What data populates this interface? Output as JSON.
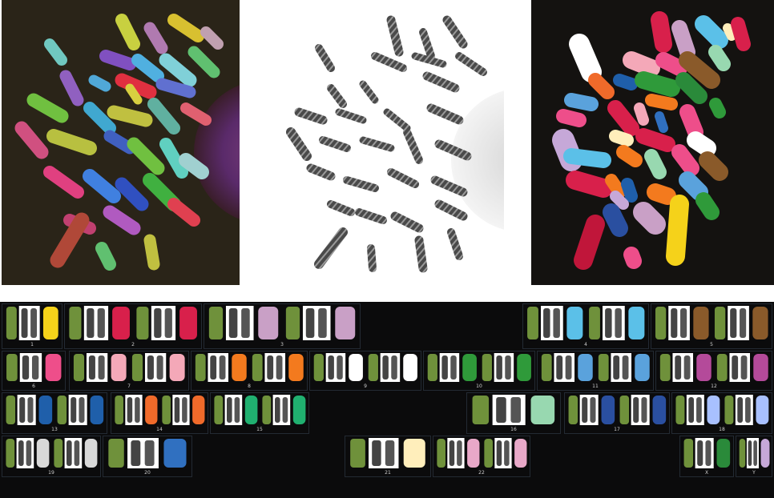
{
  "panels": {
    "fish": {
      "background": "#2a2418"
    },
    "gband": {
      "background": "#ffffff"
    },
    "classified": {
      "background": "#141210"
    }
  },
  "karyogram": {
    "background": "#0b0b0c",
    "labels": {
      "c1": "1",
      "c2": "2",
      "c3": "3",
      "c4": "4",
      "c5": "5",
      "c6": "6",
      "c7": "7",
      "c8": "8",
      "c9": "9",
      "c10": "10",
      "c11": "11",
      "c12": "12",
      "c13": "13",
      "c14": "14",
      "c15": "15",
      "c16": "16",
      "c17": "17",
      "c18": "18",
      "c19": "19",
      "c20": "20",
      "c21": "21",
      "c22": "22",
      "cX": "X",
      "cY": "Y"
    }
  },
  "palette": [
    "#f5d21a",
    "#d8204b",
    "#c9a0c6",
    "#5bc0e8",
    "#8a5a2a",
    "#ee4e8a",
    "#f4a8b8",
    "#f37a1e",
    "#ffffff",
    "#2f9a3a",
    "#5aa2dc",
    "#b44a9a",
    "#1f5faa",
    "#f06a2a",
    "#20b070",
    "#98d8b0",
    "#2a4fa0",
    "#a8c0ff",
    "#d8d8d8",
    "#3070c0",
    "#ffeebb",
    "#e8a8c8",
    "#2a8a3a",
    "#c6a8d8"
  ]
}
